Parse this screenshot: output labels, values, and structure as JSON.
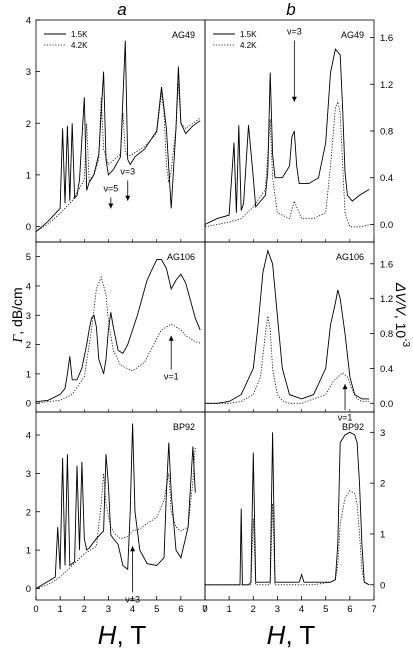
{
  "column_labels": [
    "a",
    "b"
  ],
  "x_axis": {
    "label_italic": "H",
    "label_rest": ", T",
    "ticks": [
      0,
      1,
      2,
      3,
      4,
      5,
      6,
      7
    ],
    "range": [
      0,
      7
    ]
  },
  "left_ylabel_italic": "Γ",
  "left_ylabel_rest": ", dB/cm",
  "right_ylabel_italic": "ΔV/V",
  "right_ylabel_rest": ", 10",
  "right_ylabel_exp": "-3",
  "legend": {
    "solid": "1.5K",
    "dotted": "4.2K"
  },
  "chart_data": [
    {
      "id": "a-AG49",
      "type": "line",
      "sample": "AG49",
      "col": 0,
      "row": 0,
      "ylim": [
        -0.3,
        4
      ],
      "yticks": [
        0,
        1,
        2,
        3,
        4
      ],
      "legend": true,
      "annotations": [
        {
          "text": "ν=5",
          "x": 3.1,
          "y": 0.62,
          "arrow_y": 0.35
        },
        {
          "text": "ν=3",
          "x": 3.8,
          "y": 0.95,
          "arrow_y": 0.5
        }
      ],
      "series": [
        {
          "name": "1.5K",
          "style": "solid",
          "x": [
            0,
            0.5,
            1,
            1.1,
            1.2,
            1.3,
            1.4,
            1.5,
            1.6,
            1.7,
            1.8,
            2.0,
            2.1,
            2.2,
            2.4,
            2.6,
            2.8,
            2.9,
            3.0,
            3.2,
            3.5,
            3.7,
            3.8,
            3.9,
            4.1,
            4.5,
            5.0,
            5.2,
            5.4,
            5.6,
            5.8,
            5.9,
            6.0,
            6.2,
            6.5,
            6.8
          ],
          "y": [
            -0.1,
            0.1,
            0.35,
            1.9,
            0.45,
            1.95,
            0.5,
            2.0,
            0.55,
            0.6,
            0.9,
            2.5,
            0.7,
            0.85,
            1.0,
            1.4,
            3.0,
            1.3,
            1.0,
            1.1,
            1.35,
            3.6,
            1.3,
            1.2,
            1.35,
            1.5,
            1.85,
            2.7,
            1.9,
            0.35,
            1.9,
            3.1,
            2.0,
            1.8,
            1.95,
            2.05
          ]
        },
        {
          "name": "4.2K",
          "style": "dotted",
          "x": [
            0,
            0.5,
            1,
            1.5,
            2.0,
            2.1,
            2.2,
            2.4,
            2.6,
            2.7,
            2.8,
            3.0,
            3.5,
            3.6,
            3.7,
            3.8,
            4.0,
            4.5,
            5.0,
            5.2,
            5.3,
            5.4,
            5.5,
            5.6,
            5.8,
            5.9,
            6.0,
            6.2,
            6.5,
            6.8
          ],
          "y": [
            -0.1,
            0.05,
            0.25,
            0.5,
            0.9,
            2.0,
            0.9,
            1.0,
            1.3,
            2.5,
            1.5,
            1.2,
            1.4,
            2.2,
            1.45,
            1.35,
            1.4,
            1.55,
            1.8,
            2.6,
            2.2,
            1.2,
            0.85,
            1.1,
            1.9,
            2.8,
            2.0,
            1.9,
            2.0,
            2.1
          ]
        }
      ]
    },
    {
      "id": "b-AG49",
      "type": "line",
      "sample": "AG49",
      "col": 1,
      "row": 0,
      "ylim": [
        -0.15,
        1.75
      ],
      "yticks": [
        0.0,
        0.4,
        0.8,
        1.2,
        1.6
      ],
      "legend": true,
      "annotations": [
        {
          "text": "ν=3",
          "x": 3.7,
          "y": 1.6,
          "arrow_y": 1.05
        }
      ],
      "series": [
        {
          "name": "1.5K",
          "style": "solid",
          "x": [
            0,
            0.5,
            1.0,
            1.2,
            1.3,
            1.4,
            1.5,
            1.6,
            1.8,
            2.0,
            2.1,
            2.3,
            2.5,
            2.6,
            2.7,
            2.8,
            2.9,
            3.2,
            3.5,
            3.6,
            3.7,
            3.8,
            3.9,
            4.3,
            4.7,
            5.0,
            5.2,
            5.4,
            5.6,
            5.7,
            5.8,
            5.9,
            6.1,
            6.4,
            6.8
          ],
          "y": [
            0.0,
            0.05,
            0.08,
            0.7,
            0.1,
            0.85,
            0.12,
            0.18,
            0.85,
            0.4,
            0.15,
            0.2,
            0.25,
            0.45,
            1.3,
            0.6,
            0.4,
            0.4,
            0.5,
            0.75,
            0.8,
            0.5,
            0.35,
            0.35,
            0.4,
            0.7,
            1.3,
            1.5,
            1.45,
            1.0,
            0.45,
            0.25,
            0.2,
            0.25,
            0.3
          ]
        },
        {
          "name": "4.2K",
          "style": "dotted",
          "x": [
            0,
            0.5,
            1.0,
            1.5,
            2.0,
            2.5,
            2.6,
            2.7,
            2.8,
            3.0,
            3.5,
            3.7,
            4.0,
            4.5,
            5.0,
            5.2,
            5.4,
            5.5,
            5.6,
            5.8,
            6.0,
            6.5,
            6.8
          ],
          "y": [
            -0.02,
            0.0,
            0.02,
            0.05,
            0.15,
            0.3,
            0.6,
            0.9,
            0.4,
            0.1,
            0.05,
            0.2,
            0.05,
            0.05,
            0.1,
            0.5,
            1.0,
            1.05,
            0.95,
            0.1,
            -0.02,
            -0.02,
            0.0
          ]
        }
      ]
    },
    {
      "id": "a-AG106",
      "type": "line",
      "sample": "AG106",
      "col": 0,
      "row": 1,
      "ylim": [
        -0.3,
        5.5
      ],
      "yticks": [
        0,
        1,
        2,
        3,
        4,
        5
      ],
      "legend": false,
      "annotations": [
        {
          "text": "ν=1",
          "x": 5.6,
          "y": 1.15,
          "arrow_y": 2.3
        }
      ],
      "series": [
        {
          "name": "1.5K",
          "style": "solid",
          "x": [
            0,
            0.5,
            1.0,
            1.2,
            1.3,
            1.4,
            1.5,
            1.7,
            1.9,
            2.1,
            2.2,
            2.3,
            2.4,
            2.5,
            2.6,
            2.8,
            2.9,
            3.0,
            3.1,
            3.2,
            3.4,
            3.6,
            3.8,
            4.2,
            4.6,
            5.0,
            5.2,
            5.4,
            5.6,
            5.8,
            6.0,
            6.2,
            6.4,
            6.6,
            6.8
          ],
          "y": [
            0.05,
            0.1,
            0.3,
            0.5,
            1.0,
            1.6,
            0.8,
            0.8,
            1.2,
            2.0,
            2.5,
            2.9,
            3.0,
            2.6,
            1.5,
            1.0,
            1.5,
            2.5,
            3.1,
            2.6,
            1.8,
            1.7,
            2.0,
            3.0,
            4.2,
            4.9,
            4.9,
            4.6,
            3.9,
            4.2,
            4.4,
            4.1,
            3.5,
            2.9,
            2.5
          ]
        },
        {
          "name": "4.2K",
          "style": "dotted",
          "x": [
            0,
            0.5,
            1.0,
            1.5,
            2.0,
            2.3,
            2.5,
            2.7,
            2.9,
            3.0,
            3.2,
            3.5,
            4.0,
            4.5,
            5.0,
            5.2,
            5.4,
            5.6,
            5.8,
            6.0,
            6.2,
            6.4,
            6.6,
            6.8
          ],
          "y": [
            0.0,
            0.05,
            0.1,
            0.3,
            0.9,
            2.5,
            3.9,
            4.3,
            3.7,
            2.8,
            1.8,
            1.3,
            1.1,
            1.4,
            2.2,
            2.5,
            2.6,
            2.7,
            2.6,
            2.5,
            2.3,
            2.2,
            2.1,
            2.05
          ]
        }
      ]
    },
    {
      "id": "b-AG106",
      "type": "line",
      "sample": "AG106",
      "col": 1,
      "row": 1,
      "ylim": [
        -0.1,
        1.85
      ],
      "yticks": [
        0.0,
        0.4,
        0.8,
        1.2,
        1.6
      ],
      "legend": false,
      "annotations": [
        {
          "text": "ν=1",
          "x": 5.8,
          "y": -0.08,
          "arrow_y": 0.22
        }
      ],
      "series": [
        {
          "name": "1.5K",
          "style": "solid",
          "x": [
            0,
            0.5,
            1.0,
            1.5,
            2.0,
            2.2,
            2.4,
            2.6,
            2.8,
            3.0,
            3.2,
            3.5,
            4.0,
            4.5,
            5.0,
            5.2,
            5.4,
            5.5,
            5.6,
            5.8,
            6.0,
            6.2,
            6.5,
            6.8
          ],
          "y": [
            0.0,
            0.0,
            0.02,
            0.1,
            0.4,
            0.9,
            1.5,
            1.75,
            1.6,
            1.0,
            0.4,
            0.1,
            0.05,
            0.1,
            0.4,
            0.9,
            1.15,
            1.3,
            1.2,
            0.8,
            0.3,
            0.1,
            0.05,
            0.05
          ]
        },
        {
          "name": "4.2K",
          "style": "dotted",
          "x": [
            0,
            0.5,
            1.0,
            1.5,
            2.0,
            2.3,
            2.5,
            2.6,
            2.7,
            2.8,
            3.0,
            3.2,
            3.5,
            4.0,
            4.5,
            5.0,
            5.3,
            5.5,
            5.7,
            5.9,
            6.1,
            6.3,
            6.5,
            6.8
          ],
          "y": [
            0.0,
            0.0,
            0.0,
            0.02,
            0.1,
            0.3,
            0.8,
            1.0,
            0.85,
            0.4,
            0.1,
            0.03,
            0.0,
            0.0,
            0.05,
            0.1,
            0.25,
            0.3,
            0.35,
            0.3,
            0.15,
            0.05,
            0.02,
            0.02
          ]
        }
      ]
    },
    {
      "id": "a-BP92",
      "type": "line",
      "sample": "BP92",
      "col": 0,
      "row": 2,
      "ylim": [
        -0.3,
        4.6
      ],
      "yticks": [
        0,
        1,
        2,
        3,
        4
      ],
      "legend": false,
      "annotations": [
        {
          "text": "ν=3",
          "x": 4.0,
          "y": -0.1,
          "arrow_y": 1.1
        }
      ],
      "series": [
        {
          "name": "1.5K",
          "style": "solid",
          "x": [
            0,
            0.4,
            0.8,
            0.9,
            1.0,
            1.1,
            1.2,
            1.3,
            1.4,
            1.6,
            1.7,
            1.8,
            1.9,
            2.0,
            2.1,
            2.2,
            2.5,
            2.8,
            2.9,
            3.0,
            3.1,
            3.2,
            3.4,
            3.6,
            3.8,
            3.9,
            4.0,
            4.1,
            4.3,
            4.6,
            5.0,
            5.3,
            5.4,
            5.5,
            5.6,
            5.8,
            6.0,
            6.3,
            6.5,
            6.6
          ],
          "y": [
            0.0,
            0.15,
            0.3,
            1.6,
            0.5,
            3.4,
            0.6,
            3.5,
            0.6,
            0.7,
            3.2,
            1.0,
            3.3,
            1.3,
            1.0,
            1.05,
            1.3,
            1.5,
            3.5,
            2.7,
            1.4,
            1.3,
            1.15,
            0.6,
            0.5,
            2.0,
            4.3,
            2.0,
            1.0,
            0.65,
            0.6,
            0.8,
            2.5,
            3.8,
            2.5,
            1.0,
            0.8,
            1.6,
            3.7,
            2.5
          ]
        },
        {
          "name": "4.2K",
          "style": "dotted",
          "x": [
            0,
            0.5,
            1.0,
            1.5,
            2.0,
            2.5,
            2.7,
            2.8,
            2.9,
            3.1,
            3.3,
            3.5,
            3.8,
            4.0,
            4.3,
            4.6,
            5.0,
            5.3,
            5.5,
            5.6,
            5.8,
            6.0,
            6.3,
            6.5,
            6.6
          ],
          "y": [
            0.0,
            0.1,
            0.3,
            0.6,
            0.9,
            1.1,
            2.2,
            3.0,
            2.2,
            1.6,
            1.4,
            1.3,
            1.35,
            1.5,
            1.55,
            1.7,
            1.85,
            2.3,
            3.0,
            2.0,
            1.6,
            1.5,
            1.6,
            2.8,
            3.7
          ]
        }
      ]
    },
    {
      "id": "b-BP92",
      "type": "line",
      "sample": "BP92",
      "col": 1,
      "row": 2,
      "ylim": [
        -0.3,
        3.4
      ],
      "yticks": [
        0,
        1,
        2,
        3
      ],
      "legend": false,
      "annotations": [],
      "series": [
        {
          "name": "1.5K",
          "style": "solid",
          "x": [
            0,
            0.5,
            1.0,
            1.45,
            1.5,
            1.55,
            1.8,
            1.9,
            2.0,
            2.1,
            2.5,
            2.7,
            2.8,
            2.9,
            3.0,
            3.5,
            3.9,
            4.0,
            4.1,
            4.5,
            5.2,
            5.4,
            5.5,
            5.6,
            5.8,
            6.0,
            6.2,
            6.3,
            6.4,
            6.5,
            6.6,
            6.8
          ],
          "y": [
            0.0,
            0.0,
            0.0,
            0.0,
            1.5,
            0.0,
            0.0,
            0.05,
            2.6,
            0.05,
            0.05,
            0.05,
            3.0,
            0.05,
            0.05,
            0.05,
            0.05,
            0.2,
            0.05,
            0.05,
            0.05,
            0.1,
            0.8,
            2.8,
            2.95,
            3.0,
            2.95,
            2.8,
            2.0,
            0.8,
            0.05,
            0.0
          ]
        },
        {
          "name": "4.2K",
          "style": "dotted",
          "x": [
            0,
            1.0,
            1.9,
            2.0,
            2.1,
            2.7,
            2.8,
            2.9,
            3.5,
            4.5,
            5.2,
            5.4,
            5.5,
            5.6,
            5.8,
            6.0,
            6.2,
            6.3,
            6.4,
            6.5,
            6.6,
            6.8
          ],
          "y": [
            0.0,
            0.0,
            0.0,
            1.3,
            0.0,
            0.0,
            1.6,
            0.0,
            0.0,
            0.0,
            0.05,
            0.1,
            0.4,
            1.2,
            1.7,
            1.85,
            1.8,
            1.6,
            1.0,
            0.3,
            0.05,
            0.0
          ]
        }
      ]
    }
  ]
}
